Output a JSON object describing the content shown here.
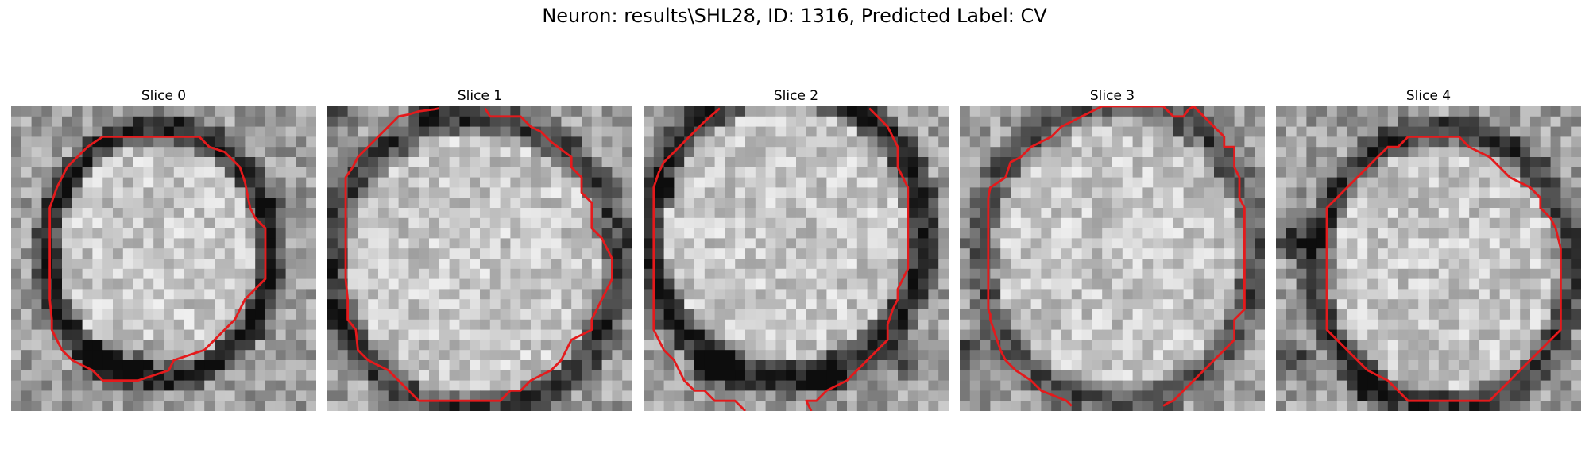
{
  "title": "Neuron: results\\SHL28, ID: 1316, Predicted Label: CV",
  "slices": [
    {
      "title": "Slice 0"
    },
    {
      "title": "Slice 1"
    },
    {
      "title": "Slice 2"
    },
    {
      "title": "Slice 3"
    },
    {
      "title": "Slice 4"
    }
  ],
  "colors": {
    "contour": "#e41a1c",
    "background": "#ffffff"
  }
}
